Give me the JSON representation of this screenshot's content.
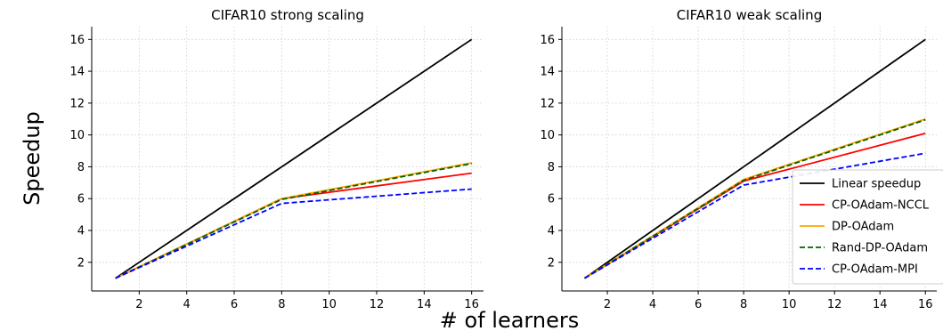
{
  "figure": {
    "ylabel": "Speedup",
    "xlabel": "# of learners"
  },
  "chart_data": [
    {
      "type": "line",
      "title": "CIFAR10 strong scaling",
      "x": [
        1,
        8,
        16
      ],
      "xticks": [
        2,
        4,
        6,
        8,
        10,
        12,
        14,
        16
      ],
      "yticks": [
        2,
        4,
        6,
        8,
        10,
        12,
        14,
        16
      ],
      "xlim": [
        0,
        16.5
      ],
      "ylim": [
        0.2,
        16.8
      ],
      "grid": true,
      "series": [
        {
          "name": "Linear speedup",
          "values": [
            1,
            8,
            16
          ],
          "color": "#000000",
          "dash": "solid"
        },
        {
          "name": "CP-OAdam-NCCL",
          "values": [
            1,
            6.0,
            7.6
          ],
          "color": "#ff0000",
          "dash": "solid"
        },
        {
          "name": "DP-OAdam",
          "values": [
            1,
            6.0,
            8.25
          ],
          "color": "#ffa500",
          "dash": "solid"
        },
        {
          "name": "Rand-DP-OAdam",
          "values": [
            1,
            5.95,
            8.2
          ],
          "color": "#006400",
          "dash": "dashed"
        },
        {
          "name": "CP-OAdam-MPI",
          "values": [
            1,
            5.7,
            6.6
          ],
          "color": "#0000ff",
          "dash": "dashed"
        }
      ]
    },
    {
      "type": "line",
      "title": "CIFAR10 weak scaling",
      "x": [
        1,
        8,
        16
      ],
      "xticks": [
        2,
        4,
        6,
        8,
        10,
        12,
        14,
        16
      ],
      "yticks": [
        2,
        4,
        6,
        8,
        10,
        12,
        14,
        16
      ],
      "xlim": [
        0,
        16.5
      ],
      "ylim": [
        0.2,
        16.8
      ],
      "grid": true,
      "legend": "lower-right",
      "series": [
        {
          "name": "Linear speedup",
          "values": [
            1,
            8,
            16
          ],
          "color": "#000000",
          "dash": "solid"
        },
        {
          "name": "CP-OAdam-NCCL",
          "values": [
            1,
            7.1,
            10.1
          ],
          "color": "#ff0000",
          "dash": "solid"
        },
        {
          "name": "DP-OAdam",
          "values": [
            1,
            7.2,
            11.0
          ],
          "color": "#ffa500",
          "dash": "solid"
        },
        {
          "name": "Rand-DP-OAdam",
          "values": [
            1,
            7.15,
            10.95
          ],
          "color": "#006400",
          "dash": "dashed"
        },
        {
          "name": "CP-OAdam-MPI",
          "values": [
            1,
            6.85,
            8.85
          ],
          "color": "#0000ff",
          "dash": "dashed"
        }
      ]
    }
  ]
}
